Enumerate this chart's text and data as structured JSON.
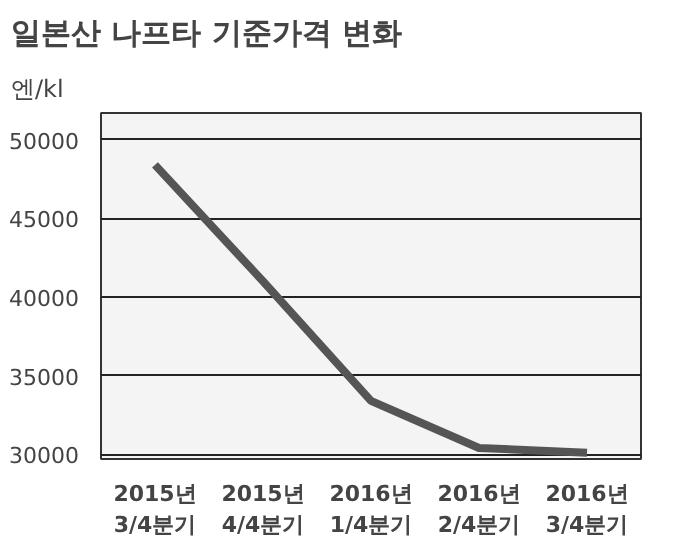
{
  "chart_data": {
    "type": "line",
    "title": "일본산 나프타 기준가격 변화",
    "ylabel": "엔/kl",
    "categories": [
      "2015년\n3/4분기",
      "2015년\n4/4분기",
      "2016년\n1/4분기",
      "2016년\n2/4분기",
      "2016년\n3/4분기"
    ],
    "series": [
      {
        "color": "#555555",
        "values": [
          48400,
          41000,
          33400,
          30400,
          30100
        ]
      }
    ],
    "ylim": [
      29700,
      51700
    ],
    "yticks": [
      30000,
      35000,
      40000,
      45000,
      50000
    ],
    "grid": "y",
    "marker": "none",
    "line_style": "solid"
  }
}
